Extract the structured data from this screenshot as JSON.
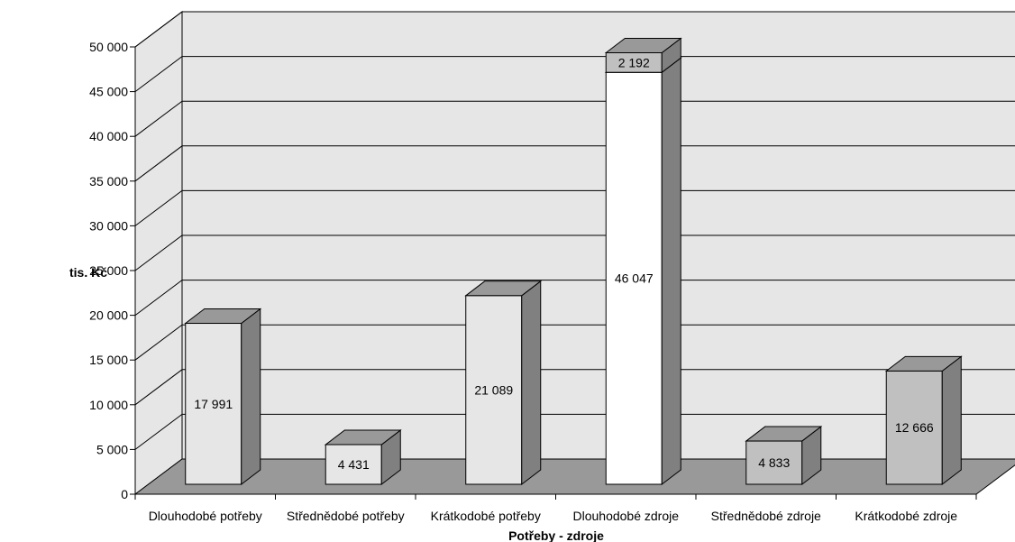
{
  "chart_data": {
    "type": "bar",
    "style": "3d-stacked-column",
    "title": "",
    "xlabel": "Potřeby - zdroje",
    "ylabel": "tis. Kč",
    "ylim": [
      0,
      50000
    ],
    "yticks": [
      0,
      5000,
      10000,
      15000,
      20000,
      25000,
      30000,
      35000,
      40000,
      45000,
      50000
    ],
    "ytick_labels": [
      "0",
      "5 000",
      "10 000",
      "15 000",
      "20 000",
      "25 000",
      "30 000",
      "35 000",
      "40 000",
      "45 000",
      "50 000"
    ],
    "categories": [
      "Dlouhodobé potřeby",
      "Střednědobé potřeby",
      "Krátkodobé potřeby",
      "Dlouhodobé zdroje",
      "Střednědobé zdroje",
      "Krátkodobé zdroje"
    ],
    "series": [
      {
        "values": [
          17991,
          4431,
          21089,
          46047,
          4833,
          12666
        ],
        "value_labels": [
          "17 991",
          "4 431",
          "21 089",
          "46 047",
          "4 833",
          "12 666"
        ],
        "colors": [
          "#e6e6e6",
          "#e6e6e6",
          "#e6e6e6",
          "#ffffff",
          "#c0c0c0",
          "#c0c0c0"
        ]
      },
      {
        "values": [
          0,
          0,
          0,
          2192,
          0,
          0
        ],
        "value_labels": [
          "",
          "",
          "",
          "2 192",
          "",
          ""
        ],
        "colors": [
          "#c0c0c0",
          "#c0c0c0",
          "#c0c0c0",
          "#c0c0c0",
          "#c0c0c0",
          "#c0c0c0"
        ]
      }
    ],
    "grid": true,
    "legend": "none",
    "colors": {
      "wall": "#e6e6e6",
      "floor": "#999999",
      "gridline": "#000000",
      "bar_top": "#999999",
      "bar_side": "#808080"
    }
  }
}
